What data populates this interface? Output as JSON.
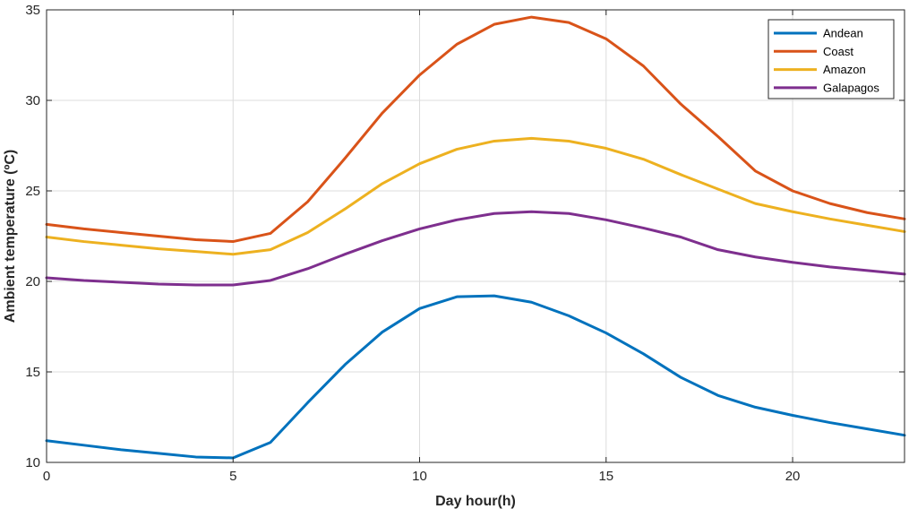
{
  "chart_data": {
    "type": "line",
    "title": "",
    "xlabel": "Day hour(h)",
    "ylabel": "Ambient temperature (ºC)",
    "xlim": [
      0,
      23
    ],
    "ylim": [
      10,
      35
    ],
    "xticks": [
      0,
      5,
      10,
      15,
      20
    ],
    "yticks": [
      10,
      15,
      20,
      25,
      30,
      35
    ],
    "grid": true,
    "legend_position": "top-right",
    "x": [
      0,
      1,
      2,
      3,
      4,
      5,
      6,
      7,
      8,
      9,
      10,
      11,
      12,
      13,
      14,
      15,
      16,
      17,
      18,
      19,
      20,
      21,
      22,
      23
    ],
    "series": [
      {
        "name": "Andean",
        "color": "#0072BD",
        "values": [
          11.2,
          10.95,
          10.7,
          10.5,
          10.3,
          10.25,
          11.1,
          13.3,
          15.4,
          17.2,
          18.5,
          19.15,
          19.2,
          18.85,
          18.1,
          17.15,
          16.0,
          14.7,
          13.7,
          13.05,
          12.6,
          12.2,
          11.85,
          11.5
        ]
      },
      {
        "name": "Coast",
        "color": "#D95319",
        "values": [
          23.15,
          22.9,
          22.7,
          22.5,
          22.3,
          22.2,
          22.65,
          24.4,
          26.8,
          29.3,
          31.4,
          33.1,
          34.2,
          34.6,
          34.3,
          33.4,
          31.9,
          29.8,
          28.0,
          26.1,
          25.0,
          24.3,
          23.8,
          23.45
        ]
      },
      {
        "name": "Amazon",
        "color": "#EDB120",
        "values": [
          22.45,
          22.2,
          22.0,
          21.8,
          21.65,
          21.5,
          21.75,
          22.7,
          24.0,
          25.4,
          26.5,
          27.3,
          27.75,
          27.9,
          27.75,
          27.35,
          26.75,
          25.9,
          25.1,
          24.3,
          23.85,
          23.45,
          23.1,
          22.75
        ]
      },
      {
        "name": "Galapagos",
        "color": "#7E2F8E",
        "values": [
          20.2,
          20.05,
          19.95,
          19.85,
          19.8,
          19.8,
          20.05,
          20.7,
          21.5,
          22.25,
          22.9,
          23.4,
          23.75,
          23.85,
          23.75,
          23.4,
          22.95,
          22.45,
          21.75,
          21.35,
          21.05,
          20.8,
          20.6,
          20.4
        ]
      }
    ]
  }
}
